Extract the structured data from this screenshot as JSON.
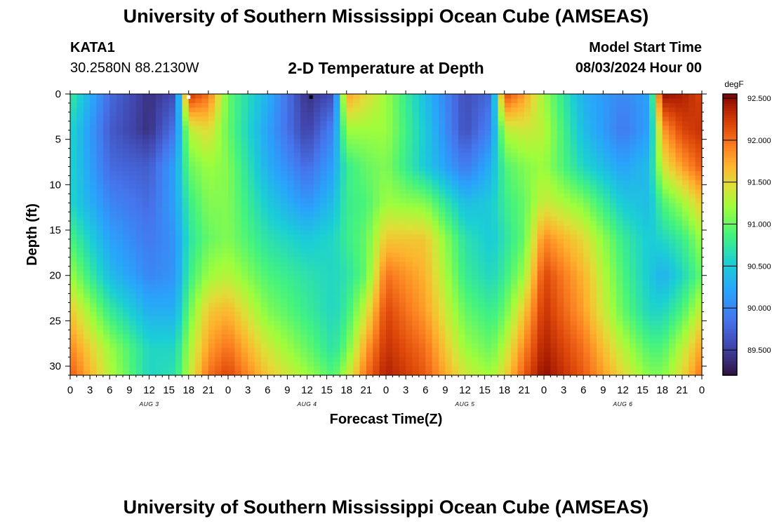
{
  "header": {
    "title": "University of Southern Mississippi Ocean Cube (AMSEAS)",
    "station_id": "KATA1",
    "station_coords": "30.2580N  88.2130W",
    "model_start_label": "Model Start Time",
    "model_start_value": "08/03/2024 Hour 00"
  },
  "footer": {
    "title": "University of Southern Mississippi Ocean Cube (AMSEAS)"
  },
  "chart_data": {
    "type": "heatmap",
    "title": "2-D Temperature at Depth",
    "xlabel": "Forecast Time(Z)",
    "ylabel": "Depth (ft)",
    "x_range_hours": [
      0,
      96
    ],
    "x_tick_step_hours": 3,
    "x_tick_labels": [
      "0",
      "3",
      "6",
      "9",
      "12",
      "15",
      "18",
      "21",
      "0",
      "3",
      "6",
      "9",
      "12",
      "15",
      "18",
      "21",
      "0",
      "3",
      "6",
      "9",
      "12",
      "15",
      "18",
      "21",
      "0",
      "3",
      "6",
      "9",
      "12",
      "15",
      "18",
      "21",
      "0"
    ],
    "day_labels": [
      {
        "label": "AUG 3",
        "hour": 12
      },
      {
        "label": "AUG 4",
        "hour": 36
      },
      {
        "label": "AUG 5",
        "hour": 60
      },
      {
        "label": "AUG 6",
        "hour": 84
      }
    ],
    "y_range_ft": [
      0,
      31
    ],
    "y_ticks": [
      0,
      5,
      10,
      15,
      20,
      25,
      30
    ],
    "y_tick_labels": [
      "0",
      "5",
      "10",
      "15",
      "20",
      "25",
      "30"
    ],
    "colorbar": {
      "unit": "degF",
      "min": 89.2,
      "max": 92.55,
      "tick_values": [
        89.5,
        90.0,
        90.5,
        91.0,
        91.5,
        92.0,
        92.5
      ],
      "tick_labels": [
        "89.500",
        "90.000",
        "90.500",
        "91.000",
        "91.500",
        "92.000",
        "92.500"
      ]
    },
    "depth_rows_ft": [
      0,
      4,
      8,
      12,
      16,
      20,
      24,
      28,
      31
    ],
    "time_cols_hours": [
      0,
      6,
      12,
      16,
      18,
      21,
      24,
      30,
      36,
      40,
      42,
      45,
      48,
      54,
      60,
      64,
      66,
      69,
      72,
      78,
      84,
      88,
      90,
      93,
      96
    ],
    "temperature_degF": [
      [
        90.8,
        89.8,
        89.4,
        89.6,
        92.3,
        92.0,
        91.0,
        90.3,
        89.4,
        89.6,
        91.8,
        91.5,
        91.2,
        90.4,
        89.6,
        89.8,
        92.2,
        91.8,
        91.2,
        90.3,
        90.0,
        90.2,
        92.5,
        92.4,
        92.2
      ],
      [
        90.6,
        89.7,
        89.4,
        89.9,
        91.3,
        91.5,
        91.0,
        90.2,
        89.5,
        90.0,
        91.2,
        91.2,
        91.2,
        90.5,
        89.6,
        90.0,
        91.3,
        91.4,
        91.3,
        90.4,
        89.9,
        90.2,
        91.8,
        92.2,
        92.3
      ],
      [
        90.6,
        89.8,
        89.7,
        90.2,
        91.0,
        91.2,
        91.1,
        90.3,
        89.8,
        90.2,
        90.8,
        91.0,
        91.1,
        90.5,
        89.9,
        90.3,
        90.9,
        91.1,
        91.2,
        90.6,
        90.2,
        90.4,
        91.4,
        91.8,
        92.1
      ],
      [
        90.6,
        90.0,
        89.8,
        90.2,
        90.8,
        91.1,
        91.1,
        90.5,
        90.1,
        90.4,
        90.8,
        90.9,
        91.2,
        91.1,
        90.4,
        90.5,
        90.8,
        91.0,
        91.4,
        91.1,
        90.5,
        90.4,
        90.9,
        91.2,
        91.6
      ],
      [
        90.9,
        90.2,
        89.9,
        90.1,
        90.7,
        91.0,
        91.1,
        90.7,
        90.5,
        90.6,
        90.8,
        91.0,
        91.6,
        91.6,
        90.7,
        90.5,
        90.7,
        91.0,
        91.9,
        91.5,
        90.8,
        90.5,
        90.6,
        90.8,
        91.2
      ],
      [
        91.2,
        90.4,
        90.0,
        90.1,
        90.8,
        91.2,
        91.3,
        90.9,
        90.7,
        90.6,
        90.7,
        91.0,
        92.0,
        91.7,
        90.8,
        90.6,
        90.8,
        91.2,
        92.2,
        91.7,
        90.9,
        90.5,
        90.3,
        90.6,
        91.0
      ],
      [
        91.6,
        90.8,
        90.3,
        90.3,
        91.0,
        91.6,
        91.7,
        91.1,
        90.8,
        90.6,
        90.8,
        91.4,
        92.2,
        91.8,
        91.0,
        90.8,
        91.0,
        91.6,
        92.3,
        91.8,
        91.0,
        90.6,
        90.6,
        90.9,
        91.4
      ],
      [
        91.9,
        91.2,
        90.6,
        90.6,
        91.2,
        91.8,
        92.0,
        91.4,
        91.0,
        90.7,
        91.0,
        91.8,
        92.3,
        92.0,
        91.2,
        91.0,
        91.3,
        91.9,
        92.4,
        92.0,
        91.3,
        90.9,
        90.9,
        91.3,
        91.8
      ],
      [
        92.1,
        91.3,
        90.6,
        90.7,
        91.3,
        92.0,
        92.2,
        91.6,
        91.2,
        90.9,
        91.3,
        92.0,
        92.4,
        92.1,
        91.4,
        91.2,
        91.5,
        92.1,
        92.5,
        92.1,
        91.5,
        91.1,
        91.1,
        91.5,
        92.0
      ]
    ],
    "markers": [
      {
        "hour": 18,
        "depth": 0.3,
        "color": "#ffffff"
      },
      {
        "hour": 36.6,
        "depth": 0.3,
        "color": "#000000"
      }
    ]
  }
}
